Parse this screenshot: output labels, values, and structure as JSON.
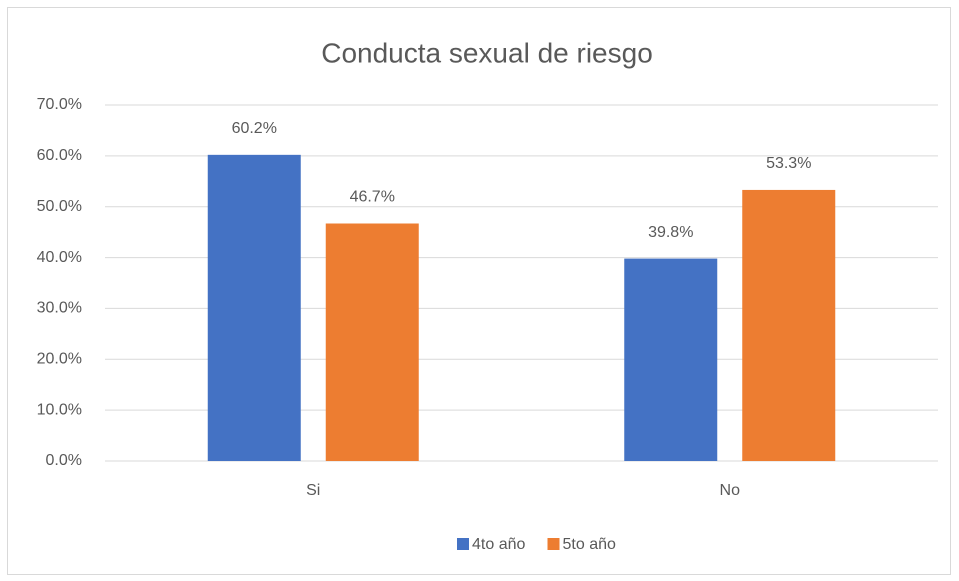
{
  "chart_data": {
    "type": "bar",
    "title": "Conducta sexual de riesgo",
    "categories": [
      "Si",
      "No"
    ],
    "series": [
      {
        "name": "4to año",
        "color": "#4472c4",
        "values": [
          60.2,
          39.8
        ],
        "value_labels": [
          "60.2%",
          "39.8%"
        ]
      },
      {
        "name": "5to año",
        "color": "#ed7d31",
        "values": [
          46.7,
          53.3
        ],
        "value_labels": [
          "46.7%",
          "53.3%"
        ]
      }
    ],
    "ylim": [
      0,
      70
    ],
    "yticks": [
      {
        "value": 0,
        "label": "0.0%"
      },
      {
        "value": 10,
        "label": "10.0%"
      },
      {
        "value": 20,
        "label": "20.0%"
      },
      {
        "value": 30,
        "label": "30.0%"
      },
      {
        "value": 40,
        "label": "40.0%"
      },
      {
        "value": 50,
        "label": "50.0%"
      },
      {
        "value": 60,
        "label": "60.0%"
      },
      {
        "value": 70,
        "label": "70.0%"
      }
    ],
    "grid": true,
    "legend": "bottom"
  }
}
